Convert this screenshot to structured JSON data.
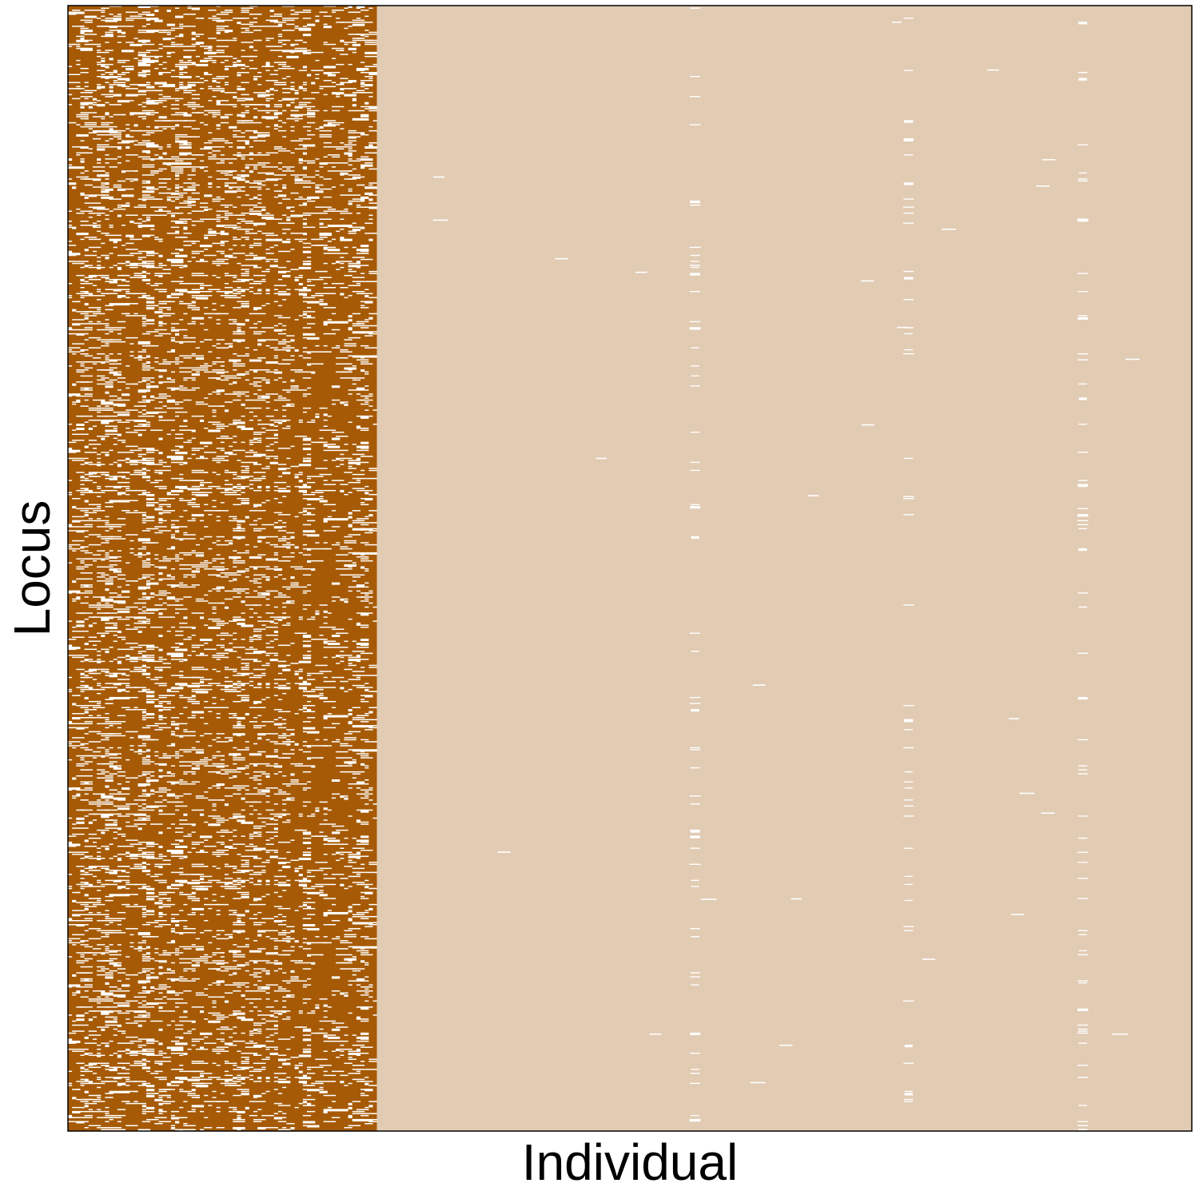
{
  "chart_data": {
    "type": "heatmap",
    "title": "",
    "xlabel": "Individual",
    "ylabel": "Locus",
    "grid": false,
    "legend": "none",
    "colors": {
      "group_1": "#a65a05",
      "group_2": "#e1cbb3",
      "missing": "#ffffff",
      "frame": "#000000"
    },
    "groups": [
      {
        "color_key": "group_1",
        "x_range": [
          0,
          0.275
        ]
      },
      {
        "color_key": "group_2",
        "x_range": [
          0.275,
          1.0
        ]
      }
    ],
    "dense_missing_column_fractions": [
      0.558,
      0.748,
      0.903
    ],
    "missing_rate": {
      "group_1": 0.16,
      "group_2": 0.001,
      "dense_columns": 0.09
    }
  }
}
